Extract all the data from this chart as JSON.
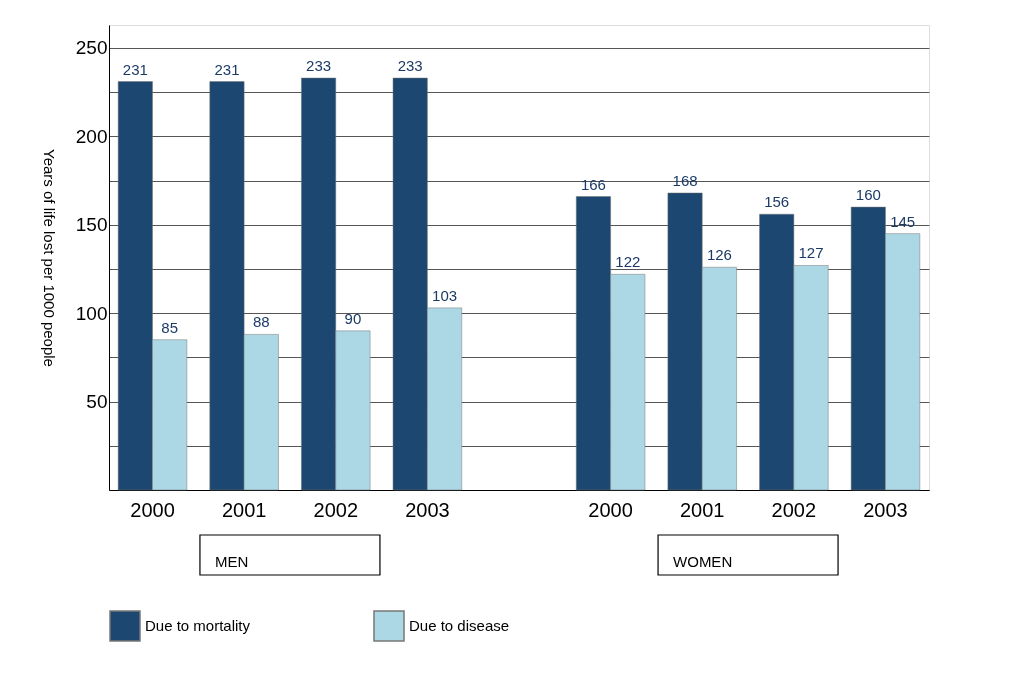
{
  "chart_data": {
    "type": "bar",
    "categories": [
      "2000",
      "2001",
      "2002",
      "2003",
      null,
      "2000",
      "2001",
      "2002",
      "2003"
    ],
    "series": [
      {
        "name": "Due to mortality",
        "color": "#1c4770",
        "values": [
          231,
          231,
          233,
          233,
          null,
          166,
          168,
          156,
          160
        ]
      },
      {
        "name": "Due to disease",
        "color": "#acd8e5",
        "values": [
          85,
          88,
          90,
          103,
          null,
          122,
          126,
          127,
          145
        ]
      }
    ],
    "ylabel": "Years of life lost per 1000 people",
    "ylim": [
      0,
      263
    ],
    "yticks": [
      {
        "value": 0,
        "label": null
      },
      {
        "value": 25,
        "label": null
      },
      50,
      {
        "value": 75,
        "label": null
      },
      100,
      {
        "value": 125,
        "label": null
      },
      150,
      {
        "value": 175,
        "label": null
      },
      200,
      {
        "value": 225,
        "label": null
      },
      250
    ],
    "annotations": [
      "MEN",
      "WOMEN"
    ],
    "data_labels": true,
    "grid": "y",
    "legend": "bottom"
  }
}
